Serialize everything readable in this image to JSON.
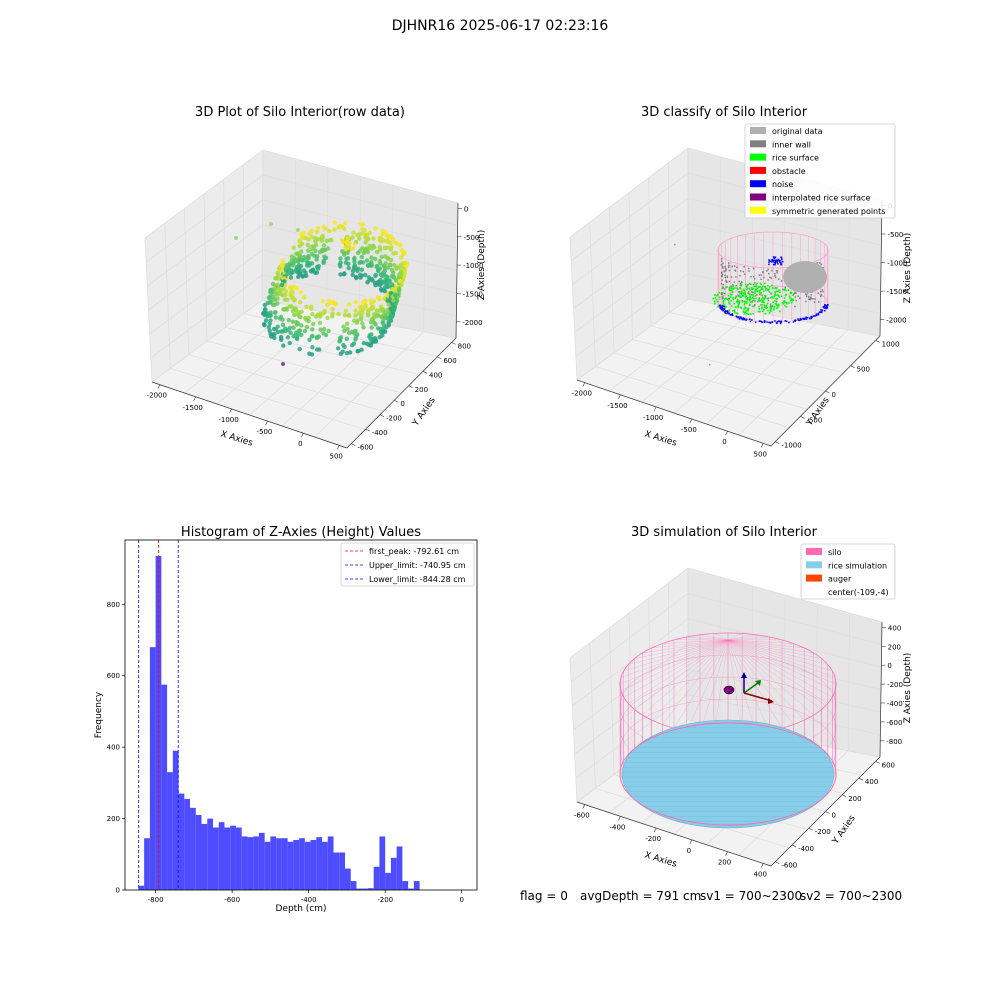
{
  "page": {
    "suptitle": "DJHNR16 2025-06-17 02:23:16",
    "status": {
      "flag": "flag = 0",
      "avg_depth": "avgDepth = 791 cm",
      "sv1": "sv1 = 700~2300",
      "sv2": "sv2 = 700~2300"
    }
  },
  "colors": {
    "histogram_bar": "#4d4dff",
    "first_peak_line": "#ff0000",
    "limit_line": "#0000ff",
    "original_data": "#b0b0b0",
    "inner_wall": "#808080",
    "rice_surface": "#00ff00",
    "obstacle": "#ff0000",
    "noise": "#0000ff",
    "interpolated_rice_surface": "#800080",
    "symmetric_generated_points": "#ffff00",
    "silo": "#ff69b4",
    "rice_simulation": "#87ceeb",
    "auger": "#ff4500"
  },
  "chart_data": [
    {
      "type": "scatter",
      "projection": "3d",
      "title": "3D Plot of Silo Interior(row data)",
      "xlabel": "X Axies",
      "ylabel": "Y Axies",
      "zlabel": "Z Axies (Depth)",
      "x_ticks": [
        "-2000",
        "-1500",
        "-1000",
        "-500",
        "0",
        "500"
      ],
      "y_ticks": [
        "-600",
        "-400",
        "-200",
        "0",
        "200",
        "400",
        "600",
        "800"
      ],
      "z_ticks": [
        "0",
        "-500",
        "-1000",
        "-1500",
        "-2000"
      ],
      "colormap": "viridis",
      "grid": true
    },
    {
      "type": "scatter",
      "projection": "3d",
      "title": "3D classify of Silo Interior",
      "xlabel": "X Axies",
      "ylabel": "Y Axies",
      "zlabel": "Z Axies (Depth)",
      "x_ticks": [
        "-2000",
        "-1500",
        "-1000",
        "-500",
        "0",
        "500"
      ],
      "y_ticks": [
        "-1000",
        "-500",
        "0",
        "500",
        "1000"
      ],
      "z_ticks": [
        "0",
        "-500",
        "-1000",
        "-1500",
        "-2000"
      ],
      "legend": [
        "original data",
        "inner wall",
        "rice surface",
        "obstacle",
        "noise",
        "interpolated rice surface",
        "symmetric generated points"
      ],
      "legend_position": "upper right",
      "grid": true
    },
    {
      "type": "bar",
      "subtype": "histogram",
      "title": "Histogram of Z-Axies (Height) Values",
      "xlabel": "Depth (cm)",
      "ylabel": "Frequency",
      "xlim": [
        -880,
        40
      ],
      "ylim": [
        0,
        980
      ],
      "x_ticks": [
        -800,
        -600,
        -400,
        -200,
        0
      ],
      "y_ticks": [
        0,
        200,
        400,
        600,
        800
      ],
      "bin_width": 15,
      "bin_starts": [
        -845,
        -830,
        -815,
        -800,
        -785,
        -770,
        -755,
        -740,
        -725,
        -710,
        -695,
        -680,
        -665,
        -650,
        -635,
        -620,
        -605,
        -590,
        -575,
        -560,
        -545,
        -530,
        -515,
        -500,
        -485,
        -470,
        -455,
        -440,
        -425,
        -410,
        -395,
        -380,
        -365,
        -350,
        -335,
        -320,
        -305,
        -290,
        -275,
        -260,
        -245,
        -230,
        -215,
        -200,
        -185,
        -170,
        -155,
        -140,
        -125,
        -110,
        -95,
        -80,
        -65,
        -50,
        -35,
        -20,
        -5
      ],
      "values": [
        12,
        145,
        680,
        935,
        575,
        330,
        390,
        270,
        255,
        230,
        210,
        185,
        200,
        175,
        190,
        175,
        180,
        175,
        150,
        148,
        150,
        160,
        135,
        150,
        145,
        145,
        135,
        140,
        145,
        135,
        140,
        148,
        135,
        150,
        105,
        105,
        60,
        25,
        4,
        4,
        5,
        65,
        150,
        48,
        90,
        122,
        25,
        4,
        25,
        0,
        0,
        0,
        0,
        0,
        0,
        0,
        0
      ],
      "vlines": [
        {
          "name": "first_peak: -792.61 cm",
          "x": -792.61,
          "color": "#ff0000",
          "style": "dashed"
        },
        {
          "name": "Upper_limit: -740.95 cm",
          "x": -740.95,
          "color": "#0000ff",
          "style": "dashed"
        },
        {
          "name": "Lower_limit: -844.28 cm",
          "x": -844.28,
          "color": "#0000ff",
          "style": "dashed"
        }
      ],
      "legend_position": "upper right"
    },
    {
      "type": "scatter",
      "projection": "3d",
      "title": "3D simulation of Silo Interior",
      "xlabel": "X Axies",
      "ylabel": "Y Axies",
      "zlabel": "Z Axies (Depth)",
      "x_ticks": [
        "-600",
        "-400",
        "-200",
        "0",
        "200",
        "400"
      ],
      "y_ticks": [
        "-600",
        "-400",
        "-200",
        "0",
        "200",
        "400",
        "600"
      ],
      "z_ticks": [
        "400",
        "200",
        "0",
        "-200",
        "-400",
        "-600",
        "-800"
      ],
      "legend": [
        "silo",
        "rice simulation",
        "auger",
        "center(-109,-4)"
      ],
      "legend_position": "upper right",
      "grid": true
    }
  ]
}
